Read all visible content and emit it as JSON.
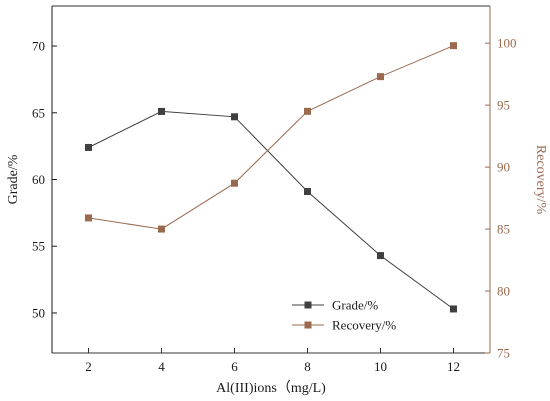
{
  "chart_data": {
    "type": "line",
    "x": [
      2,
      4,
      6,
      8,
      10,
      12
    ],
    "xlabel": "Al(III)ions（mg/L)",
    "xlim": [
      1,
      13
    ],
    "xticks": [
      "2",
      "4",
      "6",
      "8",
      "10",
      "12"
    ],
    "legend_position": "bottom-right",
    "grid": false,
    "series": [
      {
        "name": "Grade/%",
        "axis": "left",
        "values": [
          62.4,
          65.1,
          64.7,
          59.1,
          54.3,
          50.3
        ],
        "color": "#404040",
        "marker": "square"
      },
      {
        "name": "Recovery/%",
        "axis": "right",
        "values": [
          85.9,
          85.0,
          88.7,
          94.5,
          97.3,
          99.8
        ],
        "color": "#9b6a4e",
        "marker": "square"
      }
    ],
    "y_left": {
      "label": "Grade/%",
      "ylim": [
        47,
        73
      ],
      "ticks": [
        "50",
        "55",
        "60",
        "65",
        "70"
      ],
      "color": "#1a1a1a"
    },
    "y_right": {
      "label": "Recovery/%",
      "ylim": [
        75,
        103
      ],
      "ticks": [
        "75",
        "80",
        "85",
        "90",
        "95",
        "100"
      ],
      "color": "#9b6a4e"
    }
  }
}
